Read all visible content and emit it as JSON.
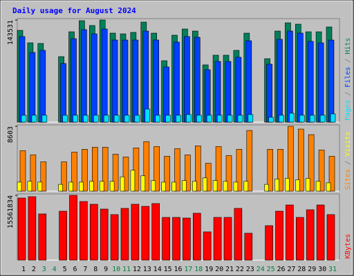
{
  "title": "Daily usage for August 2024",
  "chart_data": [
    {
      "type": "bar",
      "ylim": [
        0,
        143531
      ],
      "yticks": [
        143531
      ],
      "legend_separator": " / ",
      "series": [
        {
          "name": "Pages",
          "color": "#00e0ff",
          "values": [
            9700,
            9700,
            9700,
            null,
            9700,
            9700,
            9700,
            9700,
            9700,
            9700,
            9700,
            9700,
            18400,
            9700,
            9700,
            9700,
            10700,
            9700,
            9700,
            9700,
            9700,
            9700,
            10700,
            null,
            6800,
            9700,
            12600,
            9700,
            9700,
            9700,
            11600
          ]
        },
        {
          "name": "Files",
          "color": "#0040ff",
          "values": [
            120300,
            97900,
            100900,
            null,
            82400,
            117300,
            130000,
            124100,
            130900,
            115400,
            115400,
            115400,
            128000,
            115400,
            77600,
            112500,
            120300,
            119300,
            73700,
            85300,
            85300,
            91200,
            114400,
            null,
            81500,
            116400,
            128000,
            125100,
            113500,
            111500,
            115400
          ]
        },
        {
          "name": "Hits",
          "color": "#00805c",
          "values": [
            129000,
            111500,
            110600,
            null,
            92100,
            127000,
            142600,
            135800,
            143531,
            125100,
            124100,
            126100,
            140600,
            125100,
            86300,
            122200,
            130900,
            128000,
            80500,
            94100,
            94100,
            100900,
            125100,
            null,
            89200,
            128000,
            139600,
            137700,
            127000,
            127000,
            133800
          ]
        }
      ]
    },
    {
      "type": "bar",
      "ylim": [
        0,
        8603
      ],
      "yticks": [
        8603
      ],
      "legend_separator": " / ",
      "series": [
        {
          "name": "Sites",
          "color": "#ff8000",
          "values": [
            5366,
            4810,
            3885,
            null,
            3885,
            5180,
            5550,
            5828,
            5828,
            4903,
            4533,
            5735,
            6568,
            5920,
            4625,
            5643,
            4810,
            6013,
            3700,
            5920,
            4718,
            5550,
            8048,
            null,
            5550,
            5550,
            8603,
            8233,
            7493,
            5458,
            4625
          ]
        },
        {
          "name": "Visits",
          "color": "#ffff00",
          "values": [
            1200,
            1300,
            1200,
            null,
            900,
            1200,
            1200,
            1300,
            1300,
            1300,
            1900,
            2775,
            2035,
            1400,
            1200,
            1200,
            1400,
            1300,
            1757,
            1400,
            1300,
            1200,
            1300,
            null,
            900,
            1600,
            1700,
            1500,
            1700,
            1300,
            1100
          ]
        }
      ]
    },
    {
      "type": "bar",
      "ylim": [
        0,
        15561834
      ],
      "yticks": [
        15561834
      ],
      "legend_separator": " / ",
      "categories": [
        "1",
        "2",
        "3",
        "4",
        "5",
        "6",
        "7",
        "8",
        "9",
        "10",
        "11",
        "12",
        "13",
        "14",
        "15",
        "16",
        "17",
        "18",
        "19",
        "20",
        "21",
        "22",
        "23",
        "24",
        "25",
        "26",
        "27",
        "28",
        "29",
        "30",
        "31"
      ],
      "category_colors": [
        "#000000",
        "#000000",
        "#008040",
        "#008040",
        "#000000",
        "#000000",
        "#000000",
        "#000000",
        "#000000",
        "#008040",
        "#008040",
        "#000000",
        "#000000",
        "#000000",
        "#000000",
        "#000000",
        "#008040",
        "#008040",
        "#000000",
        "#000000",
        "#000000",
        "#000000",
        "#000000",
        "#008040",
        "#008040",
        "#000000",
        "#000000",
        "#000000",
        "#000000",
        "#000000",
        "#008040"
      ],
      "series": [
        {
          "name": "KBytes",
          "color": "#ff0000",
          "values": [
            14900000,
            15230000,
            11090000,
            null,
            11750000,
            15561834,
            14070000,
            13410000,
            12250000,
            10930000,
            12420000,
            13410000,
            12910000,
            13580000,
            10260000,
            10260000,
            10100000,
            11260000,
            6790000,
            10260000,
            10260000,
            12420000,
            6460000,
            null,
            8280000,
            11750000,
            13240000,
            10260000,
            12090000,
            13240000,
            10930000
          ]
        }
      ]
    }
  ]
}
